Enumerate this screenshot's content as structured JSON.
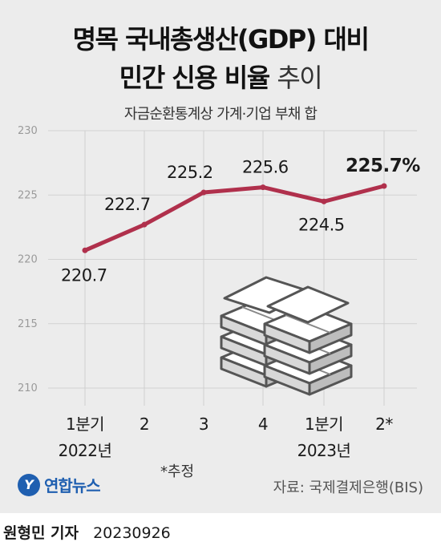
{
  "title": {
    "line1": "명목 국내총생산(GDP) 대비",
    "line2_bold": "민간 신용 비율",
    "line2_light": "추이"
  },
  "subtitle": "자금순환통계상 가계·기업 부채 합",
  "chart_data": {
    "type": "line",
    "categories": [
      "1분기 2022년",
      "2",
      "3",
      "4",
      "1분기 2023년",
      "2*"
    ],
    "x_tick_lines": [
      [
        "1분기",
        "2022년"
      ],
      [
        "2"
      ],
      [
        "3"
      ],
      [
        "4"
      ],
      [
        "1분기",
        "2023년"
      ],
      [
        "2*"
      ]
    ],
    "values": [
      220.7,
      222.7,
      225.2,
      225.6,
      224.5,
      225.7
    ],
    "data_labels": [
      "220.7",
      "222.7",
      "225.2",
      "225.6",
      "224.5",
      "225.7%"
    ],
    "ylim": [
      210,
      230
    ],
    "yticks": [
      210,
      215,
      220,
      225,
      230
    ],
    "grid": "vertical",
    "line_color": "#b0304c"
  },
  "note": "*추정",
  "source": "자료: 국제결제은행(BIS)",
  "logo": {
    "mark": "Y",
    "text": "연합뉴스"
  },
  "byline": {
    "name": "원형민 기자",
    "date": "20230926"
  },
  "illustration": "money-stack-icon"
}
